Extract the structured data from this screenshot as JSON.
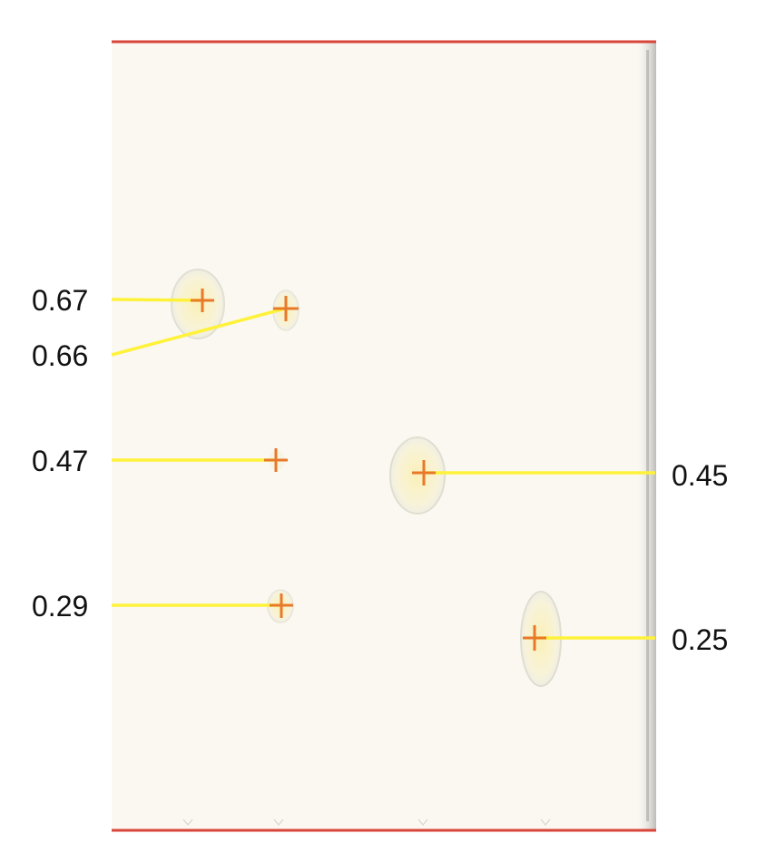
{
  "labels": {
    "spot_a": "0.67",
    "spot_b": "0.66",
    "spot_c": "0.47",
    "spot_d": "0.45",
    "spot_e": "0.29",
    "spot_f": "0.25"
  },
  "colors": {
    "plate_background": "#faf8f1",
    "boundary_line": "#d9453a",
    "leader_line": "#fff23a",
    "marker": "#e8792a",
    "spot_fill": "#f8f0c0"
  }
}
